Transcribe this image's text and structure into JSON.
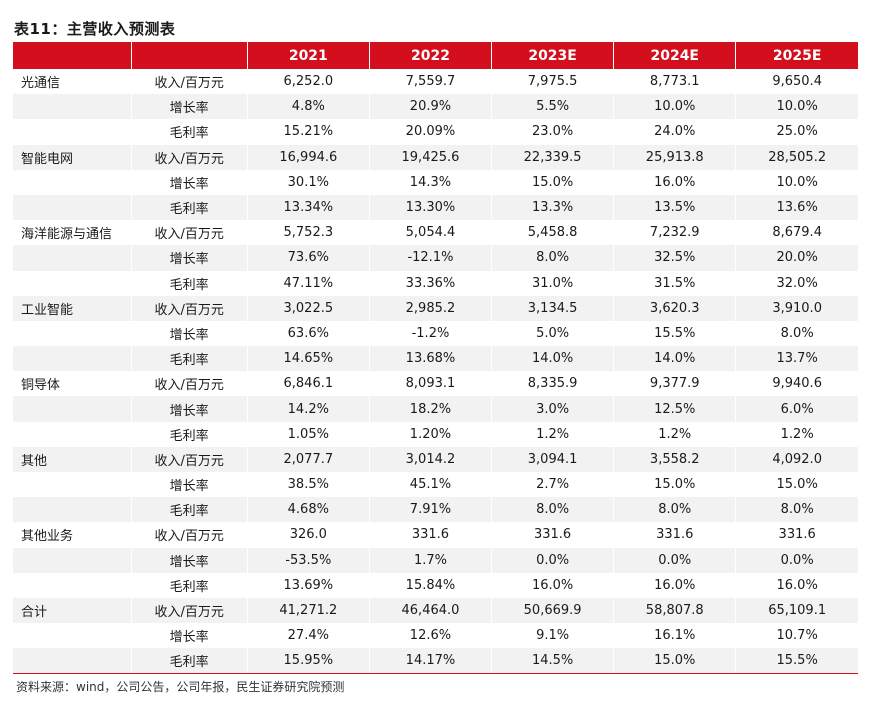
{
  "title": "表11：主营收入预测表",
  "header": [
    "",
    "",
    "2021",
    "2022",
    "2023E",
    "2024E",
    "2025E"
  ],
  "rows": [
    [
      "光通信",
      "收入/百万元",
      "6,252.0",
      "7,559.7",
      "7,975.5",
      "8,773.1",
      "9,650.4"
    ],
    [
      "",
      "增长率",
      "4.8%",
      "20.9%",
      "5.5%",
      "10.0%",
      "10.0%"
    ],
    [
      "",
      "毛利率",
      "15.21%",
      "20.09%",
      "23.0%",
      "24.0%",
      "25.0%"
    ],
    [
      "智能电网",
      "收入/百万元",
      "16,994.6",
      "19,425.6",
      "22,339.5",
      "25,913.8",
      "28,505.2"
    ],
    [
      "",
      "增长率",
      "30.1%",
      "14.3%",
      "15.0%",
      "16.0%",
      "10.0%"
    ],
    [
      "",
      "毛利率",
      "13.34%",
      "13.30%",
      "13.3%",
      "13.5%",
      "13.6%"
    ],
    [
      "海洋能源与通信",
      "收入/百万元",
      "5,752.3",
      "5,054.4",
      "5,458.8",
      "7,232.9",
      "8,679.4"
    ],
    [
      "",
      "增长率",
      "73.6%",
      "-12.1%",
      "8.0%",
      "32.5%",
      "20.0%"
    ],
    [
      "",
      "毛利率",
      "47.11%",
      "33.36%",
      "31.0%",
      "31.5%",
      "32.0%"
    ],
    [
      "工业智能",
      "收入/百万元",
      "3,022.5",
      "2,985.2",
      "3,134.5",
      "3,620.3",
      "3,910.0"
    ],
    [
      "",
      "增长率",
      "63.6%",
      "-1.2%",
      "5.0%",
      "15.5%",
      "8.0%"
    ],
    [
      "",
      "毛利率",
      "14.65%",
      "13.68%",
      "14.0%",
      "14.0%",
      "13.7%"
    ],
    [
      "铜导体",
      "收入/百万元",
      "6,846.1",
      "8,093.1",
      "8,335.9",
      "9,377.9",
      "9,940.6"
    ],
    [
      "",
      "增长率",
      "14.2%",
      "18.2%",
      "3.0%",
      "12.5%",
      "6.0%"
    ],
    [
      "",
      "毛利率",
      "1.05%",
      "1.20%",
      "1.2%",
      "1.2%",
      "1.2%"
    ],
    [
      "其他",
      "收入/百万元",
      "2,077.7",
      "3,014.2",
      "3,094.1",
      "3,558.2",
      "4,092.0"
    ],
    [
      "",
      "增长率",
      "38.5%",
      "45.1%",
      "2.7%",
      "15.0%",
      "15.0%"
    ],
    [
      "",
      "毛利率",
      "4.68%",
      "7.91%",
      "8.0%",
      "8.0%",
      "8.0%"
    ],
    [
      "其他业务",
      "收入/百万元",
      "326.0",
      "331.6",
      "331.6",
      "331.6",
      "331.6"
    ],
    [
      "",
      "增长率",
      "-53.5%",
      "1.7%",
      "0.0%",
      "0.0%",
      "0.0%"
    ],
    [
      "",
      "毛利率",
      "13.69%",
      "15.84%",
      "16.0%",
      "16.0%",
      "16.0%"
    ],
    [
      "合计",
      "收入/百万元",
      "41,271.2",
      "46,464.0",
      "50,669.9",
      "58,807.8",
      "65,109.1"
    ],
    [
      "",
      "增长率",
      "27.4%",
      "12.6%",
      "9.1%",
      "16.1%",
      "10.7%"
    ],
    [
      "",
      "毛利率",
      "15.95%",
      "14.17%",
      "14.5%",
      "15.0%",
      "15.5%"
    ]
  ],
  "source": "资料来源：wind，公司公告，公司年报，民生证券研究院预测",
  "colors": {
    "header_bg": "#d40f1d",
    "stripe": "#f2f2f2"
  }
}
